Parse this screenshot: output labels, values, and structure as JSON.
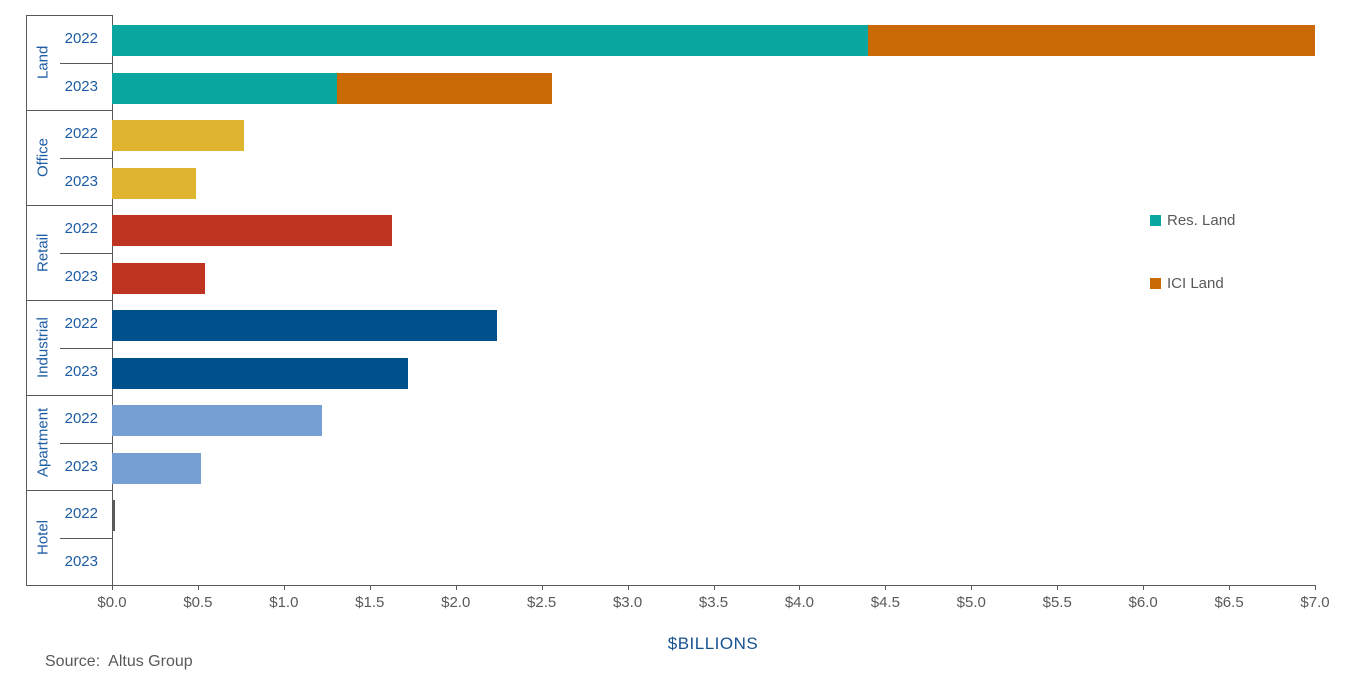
{
  "chart_data": {
    "type": "bar",
    "orientation": "horizontal",
    "title": "",
    "xlabel": "$BILLIONS",
    "xlim": [
      0,
      7
    ],
    "x_ticks": [
      "$0.0",
      "$0.5",
      "$1.0",
      "$1.5",
      "$2.0",
      "$2.5",
      "$3.0",
      "$3.5",
      "$4.0",
      "$4.5",
      "$5.0",
      "$5.5",
      "$6.0",
      "$6.5",
      "$7.0"
    ],
    "grid": false,
    "legend_position": "right",
    "legend": [
      {
        "label": "Res. Land",
        "color": "#0AA7A0"
      },
      {
        "label": "ICI Land",
        "color": "#CA6A06"
      }
    ],
    "groups": [
      {
        "label": "Land",
        "rows": [
          {
            "year": "2022",
            "segments": [
              {
                "name": "Res. Land",
                "value": 4.4,
                "color": "#0AA7A0"
              },
              {
                "name": "ICI Land",
                "value": 2.6,
                "color": "#CA6A06"
              }
            ]
          },
          {
            "year": "2023",
            "segments": [
              {
                "name": "Res. Land",
                "value": 1.31,
                "color": "#0AA7A0"
              },
              {
                "name": "ICI Land",
                "value": 1.25,
                "color": "#CA6A06"
              }
            ]
          }
        ]
      },
      {
        "label": "Office",
        "rows": [
          {
            "year": "2022",
            "segments": [
              {
                "name": "Office",
                "value": 0.77,
                "color": "#DFB42E"
              }
            ]
          },
          {
            "year": "2023",
            "segments": [
              {
                "name": "Office",
                "value": 0.49,
                "color": "#DFB42E"
              }
            ]
          }
        ]
      },
      {
        "label": "Retail",
        "rows": [
          {
            "year": "2022",
            "segments": [
              {
                "name": "Retail",
                "value": 1.63,
                "color": "#BF3420"
              }
            ]
          },
          {
            "year": "2023",
            "segments": [
              {
                "name": "Retail",
                "value": 0.54,
                "color": "#BF3420"
              }
            ]
          }
        ]
      },
      {
        "label": "Industrial",
        "rows": [
          {
            "year": "2022",
            "segments": [
              {
                "name": "Industrial",
                "value": 2.24,
                "color": "#00508C"
              }
            ]
          },
          {
            "year": "2023",
            "segments": [
              {
                "name": "Industrial",
                "value": 1.72,
                "color": "#00508C"
              }
            ]
          }
        ]
      },
      {
        "label": "Apartment",
        "rows": [
          {
            "year": "2022",
            "segments": [
              {
                "name": "Apartment",
                "value": 1.22,
                "color": "#76A0D4"
              }
            ]
          },
          {
            "year": "2023",
            "segments": [
              {
                "name": "Apartment",
                "value": 0.52,
                "color": "#76A0D4"
              }
            ]
          }
        ]
      },
      {
        "label": "Hotel",
        "rows": [
          {
            "year": "2022",
            "segments": [
              {
                "name": "Hotel",
                "value": 0.02,
                "color": "#595959"
              }
            ]
          },
          {
            "year": "2023",
            "segments": [
              {
                "name": "Hotel",
                "value": 0.0,
                "color": "#595959"
              }
            ]
          }
        ]
      }
    ]
  },
  "source": {
    "text": "Source:  Altus Group"
  },
  "colors": {
    "axis_line": "#595959",
    "tick_label": "#595959",
    "category_label": "#1E5CA4",
    "axis_title": "#17518F",
    "legend_text": "#595959",
    "background": "#FFFFFF"
  }
}
